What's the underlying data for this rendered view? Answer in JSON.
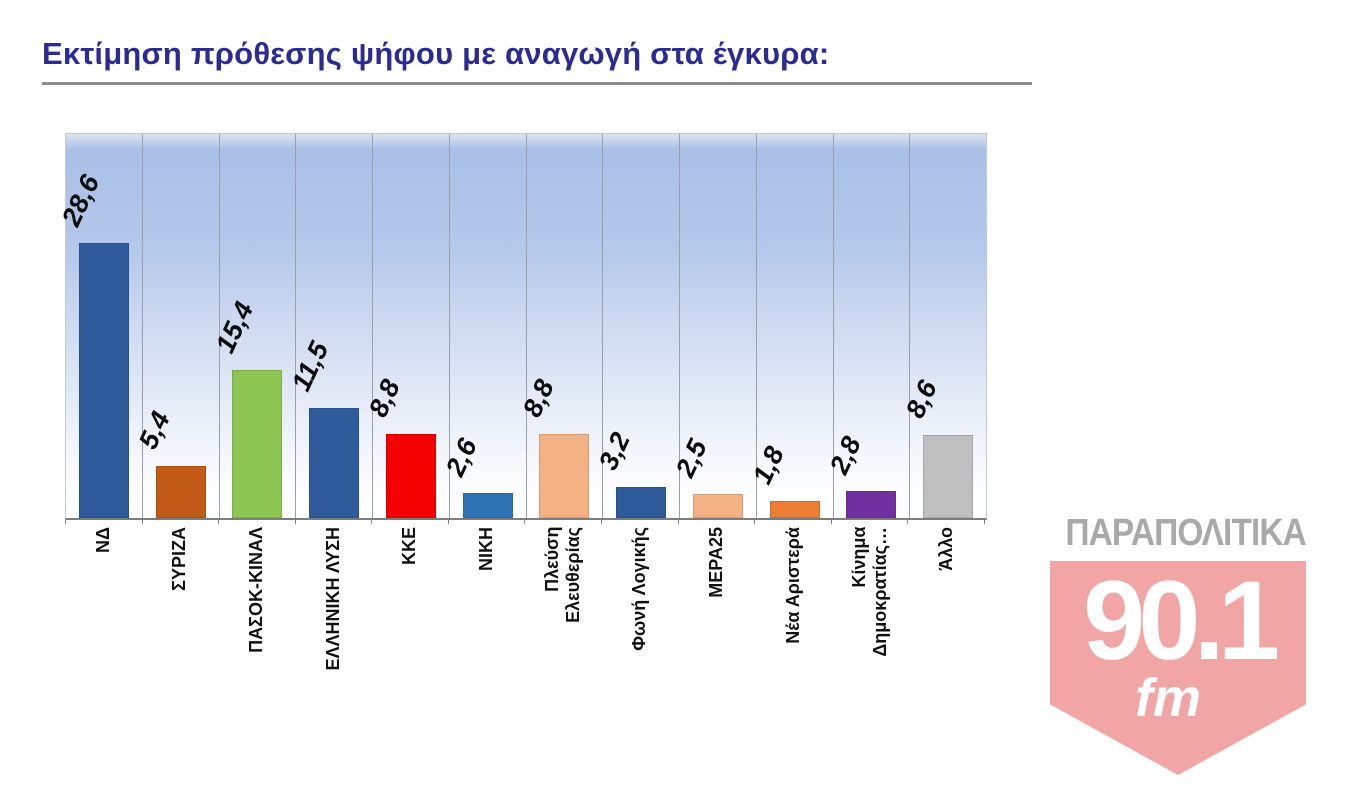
{
  "chart_data": {
    "type": "bar",
    "title": "Εκτίμηση πρόθεσης ψήφου με αναγωγή στα έγκυρα:",
    "xlabel": "",
    "ylabel": "",
    "ylim": [
      0,
      40
    ],
    "grid": "vertical-gridlines-between-categories",
    "legend": "none",
    "plot_background": "blue-to-white vertical gradient",
    "decimal_separator": ",",
    "categories": [
      "ΝΔ",
      "ΣΥΡΙΖΑ",
      "ΠΑΣΟΚ-ΚΙΝΑΛ",
      "ΕΛΛΗΝΙΚΗ ΛΥΣΗ",
      "ΚΚΕ",
      "ΝΙΚΗ",
      "Πλεύση\nΕλευθερίας",
      "Φωνή Λογικής",
      "ΜΕΡΑ25",
      "Νέα Αριστερά",
      "Κίνημα\nΔημοκρατίας…",
      "Άλλο"
    ],
    "values": [
      28.6,
      5.4,
      15.4,
      11.5,
      8.8,
      2.6,
      8.8,
      3.2,
      2.5,
      1.8,
      2.8,
      8.6
    ],
    "value_labels": [
      "28,6",
      "5,4",
      "15,4",
      "11,5",
      "8,8",
      "2,6",
      "8,8",
      "3,2",
      "2,5",
      "1,8",
      "2,8",
      "8,6"
    ],
    "colors": [
      "#2F5B9B",
      "#C15A17",
      "#8DC653",
      "#2F5B9B",
      "#F50000",
      "#2E74B5",
      "#F4B183",
      "#2F5B9B",
      "#F4B183",
      "#ED7D31",
      "#7030A0",
      "#BFBFBF"
    ]
  },
  "title": {
    "color": "#2B2B94",
    "underline_color": "#8B8B8B"
  },
  "logo": {
    "brand": "ΠΑΡΑΠΟΛΙΤΙΚΑ",
    "frequency": "90.1",
    "band": "fm",
    "brand_color": "#A9A9A9",
    "badge_color": "#F2A5A5",
    "badge_text_color": "#FFFFFF"
  }
}
